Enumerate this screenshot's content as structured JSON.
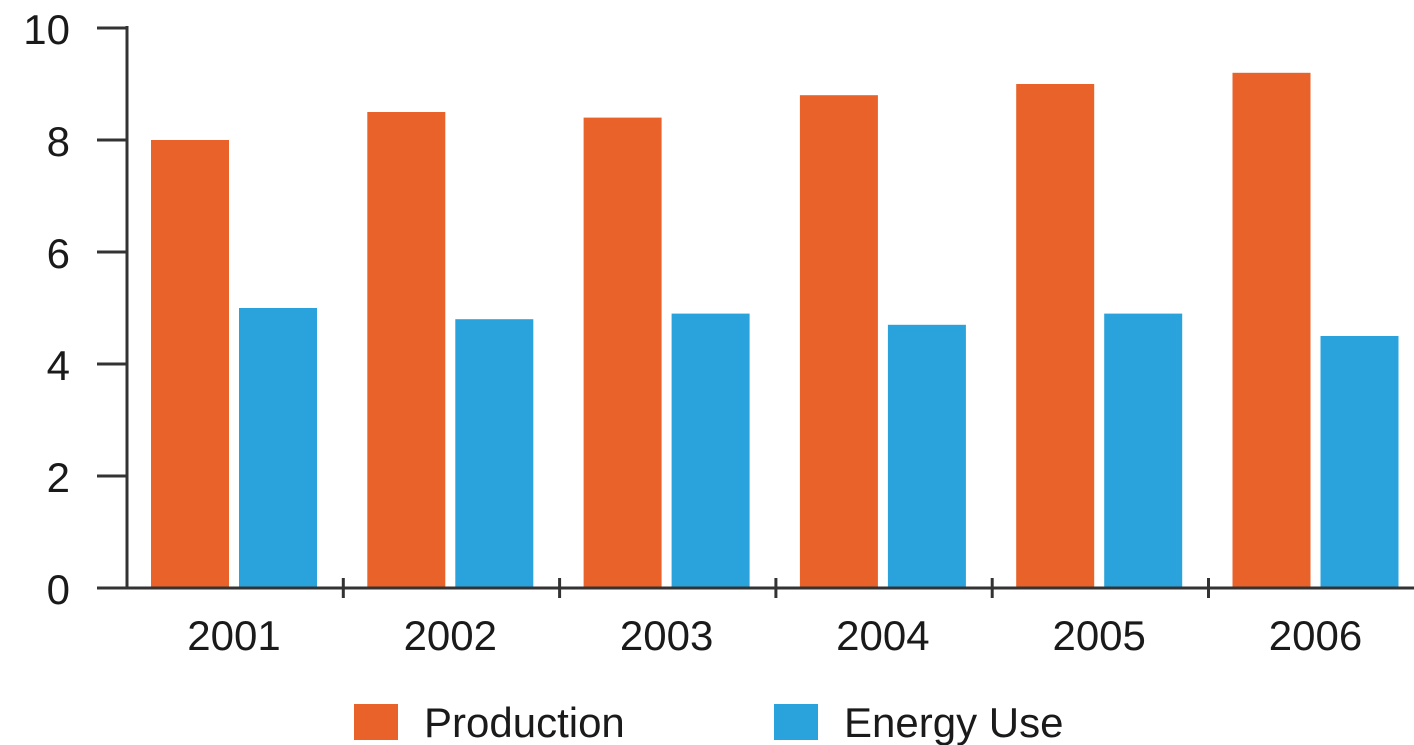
{
  "chart_data": {
    "type": "bar",
    "categories": [
      "2001",
      "2002",
      "2003",
      "2004",
      "2005",
      "2006"
    ],
    "series": [
      {
        "name": "Production",
        "values": [
          8.0,
          8.5,
          8.4,
          8.8,
          9.0,
          9.2
        ],
        "color": "#e8622a"
      },
      {
        "name": "Energy Use",
        "values": [
          5.0,
          4.8,
          4.9,
          4.7,
          4.9,
          4.5
        ],
        "color": "#2aa3dc"
      }
    ],
    "yticks": [
      "0",
      "2",
      "4",
      "6",
      "8",
      "10"
    ],
    "ylim": [
      0,
      10
    ],
    "title": "",
    "xlabel": "",
    "ylabel": "",
    "grid": false,
    "legend_position": "bottom"
  }
}
